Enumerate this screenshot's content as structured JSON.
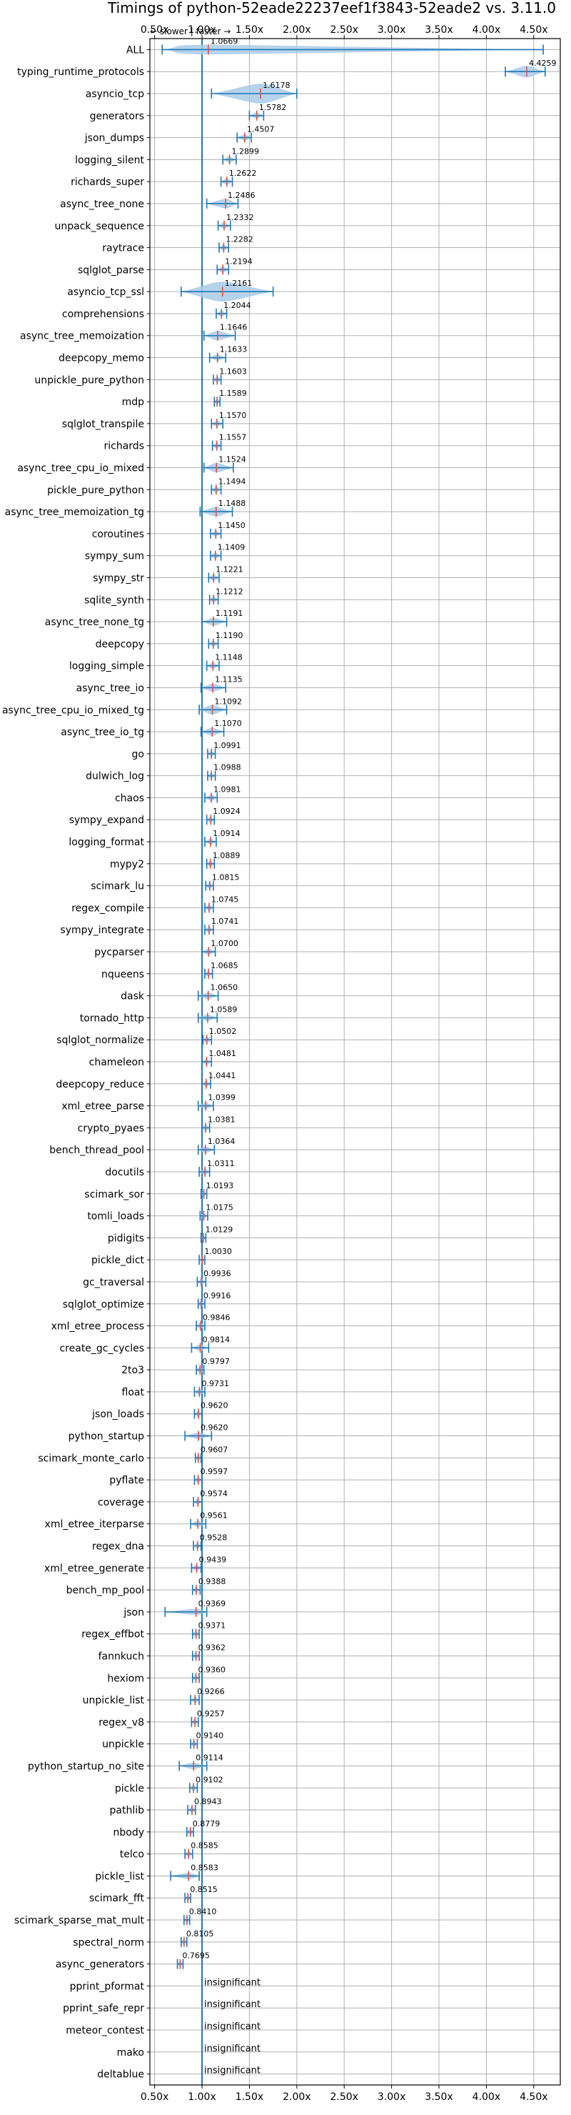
{
  "chart_data": {
    "type": "violin",
    "title": "Timings of python-52eade22237eef1f3843-52eade2 vs. 3.11.0",
    "direction_note": "← slower | faster →",
    "x_tick_labels": [
      "0.50x",
      "1.00x",
      "1.50x",
      "2.00x",
      "2.50x",
      "3.00x",
      "3.50x",
      "4.00x",
      "4.50x"
    ],
    "x_ticks": [
      0.5,
      1.0,
      1.5,
      2.0,
      2.5,
      3.0,
      3.5,
      4.0,
      4.5
    ],
    "xlim": [
      0.45,
      4.78
    ],
    "reference_line": 1.0,
    "grid": true,
    "colors": {
      "violin": "#a9cbe8",
      "whisker": "#1f77b4",
      "median": "#d9534f",
      "reference": "#1f77b4"
    },
    "insignificant_label": "insignificant",
    "benchmarks": [
      {
        "name": "ALL",
        "value": 1.0669,
        "label": "1.0669",
        "min": 0.58,
        "max": 4.6,
        "spread": 0.12
      },
      {
        "name": "typing_runtime_protocols",
        "value": 4.4259,
        "label": "4.4259",
        "min": 4.2,
        "max": 4.62,
        "spread": 0.15
      },
      {
        "name": "asyncio_tcp",
        "value": 1.6178,
        "label": "1.6178",
        "min": 1.1,
        "max": 2.0,
        "spread": 0.3
      },
      {
        "name": "generators",
        "value": 1.5782,
        "label": "1.5782",
        "min": 1.5,
        "max": 1.65,
        "spread": 0.05
      },
      {
        "name": "json_dumps",
        "value": 1.4507,
        "label": "1.4507",
        "min": 1.37,
        "max": 1.52,
        "spread": 0.05
      },
      {
        "name": "logging_silent",
        "value": 1.2899,
        "label": "1.2899",
        "min": 1.22,
        "max": 1.36,
        "spread": 0.05
      },
      {
        "name": "richards_super",
        "value": 1.2622,
        "label": "1.2622",
        "min": 1.2,
        "max": 1.32,
        "spread": 0.04
      },
      {
        "name": "async_tree_none",
        "value": 1.2486,
        "label": "1.2486",
        "min": 1.05,
        "max": 1.38,
        "spread": 0.12
      },
      {
        "name": "unpack_sequence",
        "value": 1.2332,
        "label": "1.2332",
        "min": 1.17,
        "max": 1.3,
        "spread": 0.04
      },
      {
        "name": "raytrace",
        "value": 1.2282,
        "label": "1.2282",
        "min": 1.18,
        "max": 1.28,
        "spread": 0.04
      },
      {
        "name": "sqlglot_parse",
        "value": 1.2194,
        "label": "1.2194",
        "min": 1.16,
        "max": 1.28,
        "spread": 0.04
      },
      {
        "name": "asyncio_tcp_ssl",
        "value": 1.2161,
        "label": "1.2161",
        "min": 0.78,
        "max": 1.75,
        "spread": 0.3
      },
      {
        "name": "comprehensions",
        "value": 1.2044,
        "label": "1.2044",
        "min": 1.15,
        "max": 1.26,
        "spread": 0.04
      },
      {
        "name": "async_tree_memoization",
        "value": 1.1646,
        "label": "1.1646",
        "min": 1.02,
        "max": 1.35,
        "spread": 0.12
      },
      {
        "name": "deepcopy_memo",
        "value": 1.1633,
        "label": "1.1633",
        "min": 1.08,
        "max": 1.25,
        "spread": 0.04
      },
      {
        "name": "unpickle_pure_python",
        "value": 1.1603,
        "label": "1.1603",
        "min": 1.12,
        "max": 1.2,
        "spread": 0.03
      },
      {
        "name": "mdp",
        "value": 1.1589,
        "label": "1.1589",
        "min": 1.13,
        "max": 1.19,
        "spread": 0.03
      },
      {
        "name": "sqlglot_transpile",
        "value": 1.157,
        "label": "1.1570",
        "min": 1.1,
        "max": 1.22,
        "spread": 0.04
      },
      {
        "name": "richards",
        "value": 1.1557,
        "label": "1.1557",
        "min": 1.11,
        "max": 1.2,
        "spread": 0.03
      },
      {
        "name": "async_tree_cpu_io_mixed",
        "value": 1.1524,
        "label": "1.1524",
        "min": 1.02,
        "max": 1.33,
        "spread": 0.12
      },
      {
        "name": "pickle_pure_python",
        "value": 1.1494,
        "label": "1.1494",
        "min": 1.1,
        "max": 1.2,
        "spread": 0.04
      },
      {
        "name": "async_tree_memoization_tg",
        "value": 1.1488,
        "label": "1.1488",
        "min": 0.98,
        "max": 1.32,
        "spread": 0.12
      },
      {
        "name": "coroutines",
        "value": 1.145,
        "label": "1.1450",
        "min": 1.09,
        "max": 1.2,
        "spread": 0.05
      },
      {
        "name": "sympy_sum",
        "value": 1.1409,
        "label": "1.1409",
        "min": 1.09,
        "max": 1.2,
        "spread": 0.04
      },
      {
        "name": "sympy_str",
        "value": 1.1221,
        "label": "1.1221",
        "min": 1.07,
        "max": 1.18,
        "spread": 0.04
      },
      {
        "name": "sqlite_synth",
        "value": 1.1212,
        "label": "1.1212",
        "min": 1.08,
        "max": 1.17,
        "spread": 0.03
      },
      {
        "name": "async_tree_none_tg",
        "value": 1.1191,
        "label": "1.1191",
        "min": 1.0,
        "max": 1.26,
        "spread": 0.1
      },
      {
        "name": "deepcopy",
        "value": 1.119,
        "label": "1.1190",
        "min": 1.07,
        "max": 1.17,
        "spread": 0.04
      },
      {
        "name": "logging_simple",
        "value": 1.1148,
        "label": "1.1148",
        "min": 1.05,
        "max": 1.18,
        "spread": 0.05
      },
      {
        "name": "async_tree_io",
        "value": 1.1135,
        "label": "1.1135",
        "min": 0.99,
        "max": 1.25,
        "spread": 0.1
      },
      {
        "name": "async_tree_cpu_io_mixed_tg",
        "value": 1.1092,
        "label": "1.1092",
        "min": 0.97,
        "max": 1.26,
        "spread": 0.12
      },
      {
        "name": "async_tree_io_tg",
        "value": 1.107,
        "label": "1.1070",
        "min": 0.99,
        "max": 1.23,
        "spread": 0.1
      },
      {
        "name": "go",
        "value": 1.0991,
        "label": "1.0991",
        "min": 1.06,
        "max": 1.14,
        "spread": 0.03
      },
      {
        "name": "dulwich_log",
        "value": 1.0988,
        "label": "1.0988",
        "min": 1.06,
        "max": 1.14,
        "spread": 0.03
      },
      {
        "name": "chaos",
        "value": 1.0981,
        "label": "1.0981",
        "min": 1.03,
        "max": 1.16,
        "spread": 0.04
      },
      {
        "name": "sympy_expand",
        "value": 1.0924,
        "label": "1.0924",
        "min": 1.05,
        "max": 1.13,
        "spread": 0.03
      },
      {
        "name": "logging_format",
        "value": 1.0914,
        "label": "1.0914",
        "min": 1.03,
        "max": 1.15,
        "spread": 0.04
      },
      {
        "name": "mypy2",
        "value": 1.0889,
        "label": "1.0889",
        "min": 1.05,
        "max": 1.13,
        "spread": 0.03
      },
      {
        "name": "scimark_lu",
        "value": 1.0815,
        "label": "1.0815",
        "min": 1.04,
        "max": 1.12,
        "spread": 0.03
      },
      {
        "name": "regex_compile",
        "value": 1.0745,
        "label": "1.0745",
        "min": 1.03,
        "max": 1.12,
        "spread": 0.03
      },
      {
        "name": "sympy_integrate",
        "value": 1.0741,
        "label": "1.0741",
        "min": 1.03,
        "max": 1.12,
        "spread": 0.03
      },
      {
        "name": "pycparser",
        "value": 1.07,
        "label": "1.0700",
        "min": 1.0,
        "max": 1.14,
        "spread": 0.06
      },
      {
        "name": "nqueens",
        "value": 1.0685,
        "label": "1.0685",
        "min": 1.03,
        "max": 1.11,
        "spread": 0.03
      },
      {
        "name": "dask",
        "value": 1.065,
        "label": "1.0650",
        "min": 0.96,
        "max": 1.17,
        "spread": 0.07
      },
      {
        "name": "tornado_http",
        "value": 1.0589,
        "label": "1.0589",
        "min": 0.96,
        "max": 1.16,
        "spread": 0.07
      },
      {
        "name": "sqlglot_normalize",
        "value": 1.0502,
        "label": "1.0502",
        "min": 1.01,
        "max": 1.1,
        "spread": 0.03
      },
      {
        "name": "chameleon",
        "value": 1.0481,
        "label": "1.0481",
        "min": 1.0,
        "max": 1.1,
        "spread": 0.04
      },
      {
        "name": "deepcopy_reduce",
        "value": 1.0441,
        "label": "1.0441",
        "min": 1.0,
        "max": 1.09,
        "spread": 0.03
      },
      {
        "name": "xml_etree_parse",
        "value": 1.0399,
        "label": "1.0399",
        "min": 0.96,
        "max": 1.12,
        "spread": 0.05
      },
      {
        "name": "crypto_pyaes",
        "value": 1.0381,
        "label": "1.0381",
        "min": 1.0,
        "max": 1.08,
        "spread": 0.03
      },
      {
        "name": "bench_thread_pool",
        "value": 1.0364,
        "label": "1.0364",
        "min": 0.96,
        "max": 1.13,
        "spread": 0.06
      },
      {
        "name": "docutils",
        "value": 1.0311,
        "label": "1.0311",
        "min": 0.97,
        "max": 1.08,
        "spread": 0.04
      },
      {
        "name": "scimark_sor",
        "value": 1.0193,
        "label": "1.0193",
        "min": 0.99,
        "max": 1.05,
        "spread": 0.03
      },
      {
        "name": "tomli_loads",
        "value": 1.0175,
        "label": "1.0175",
        "min": 0.98,
        "max": 1.06,
        "spread": 0.03
      },
      {
        "name": "pidigits",
        "value": 1.0129,
        "label": "1.0129",
        "min": 0.99,
        "max": 1.04,
        "spread": 0.02
      },
      {
        "name": "pickle_dict",
        "value": 1.003,
        "label": "1.0030",
        "min": 0.97,
        "max": 1.03,
        "spread": 0.02
      },
      {
        "name": "gc_traversal",
        "value": 0.9936,
        "label": "0.9936",
        "min": 0.95,
        "max": 1.04,
        "spread": 0.03
      },
      {
        "name": "sqlglot_optimize",
        "value": 0.9916,
        "label": "0.9916",
        "min": 0.96,
        "max": 1.03,
        "spread": 0.03
      },
      {
        "name": "xml_etree_process",
        "value": 0.9846,
        "label": "0.9846",
        "min": 0.94,
        "max": 1.03,
        "spread": 0.03
      },
      {
        "name": "create_gc_cycles",
        "value": 0.9814,
        "label": "0.9814",
        "min": 0.89,
        "max": 1.07,
        "spread": 0.07
      },
      {
        "name": "2to3",
        "value": 0.9797,
        "label": "0.9797",
        "min": 0.94,
        "max": 1.02,
        "spread": 0.03
      },
      {
        "name": "float",
        "value": 0.9731,
        "label": "0.9731",
        "min": 0.92,
        "max": 1.03,
        "spread": 0.04
      },
      {
        "name": "json_loads",
        "value": 0.962,
        "label": "0.9620",
        "min": 0.92,
        "max": 1.0,
        "spread": 0.03
      },
      {
        "name": "python_startup",
        "value": 0.962,
        "label": "0.9620",
        "min": 0.82,
        "max": 1.1,
        "spread": 0.06
      },
      {
        "name": "scimark_monte_carlo",
        "value": 0.9607,
        "label": "0.9607",
        "min": 0.93,
        "max": 0.99,
        "spread": 0.02
      },
      {
        "name": "pyflate",
        "value": 0.9597,
        "label": "0.9597",
        "min": 0.92,
        "max": 1.0,
        "spread": 0.03
      },
      {
        "name": "coverage",
        "value": 0.9574,
        "label": "0.9574",
        "min": 0.91,
        "max": 1.0,
        "spread": 0.03
      },
      {
        "name": "xml_etree_iterparse",
        "value": 0.9561,
        "label": "0.9561",
        "min": 0.88,
        "max": 1.04,
        "spread": 0.05
      },
      {
        "name": "regex_dna",
        "value": 0.9528,
        "label": "0.9528",
        "min": 0.91,
        "max": 0.99,
        "spread": 0.03
      },
      {
        "name": "xml_etree_generate",
        "value": 0.9439,
        "label": "0.9439",
        "min": 0.89,
        "max": 0.99,
        "spread": 0.03
      },
      {
        "name": "bench_mp_pool",
        "value": 0.9388,
        "label": "0.9388",
        "min": 0.9,
        "max": 0.98,
        "spread": 0.03
      },
      {
        "name": "json",
        "value": 0.9369,
        "label": "0.9369",
        "min": 0.61,
        "max": 1.05,
        "spread": 0.08
      },
      {
        "name": "regex_effbot",
        "value": 0.9371,
        "label": "0.9371",
        "min": 0.9,
        "max": 0.97,
        "spread": 0.03
      },
      {
        "name": "fannkuch",
        "value": 0.9362,
        "label": "0.9362",
        "min": 0.9,
        "max": 0.97,
        "spread": 0.03
      },
      {
        "name": "hexiom",
        "value": 0.936,
        "label": "0.9360",
        "min": 0.9,
        "max": 0.97,
        "spread": 0.03
      },
      {
        "name": "unpickle_list",
        "value": 0.9266,
        "label": "0.9266",
        "min": 0.88,
        "max": 0.97,
        "spread": 0.03
      },
      {
        "name": "regex_v8",
        "value": 0.9257,
        "label": "0.9257",
        "min": 0.89,
        "max": 0.96,
        "spread": 0.03
      },
      {
        "name": "unpickle",
        "value": 0.914,
        "label": "0.9140",
        "min": 0.88,
        "max": 0.95,
        "spread": 0.03
      },
      {
        "name": "python_startup_no_site",
        "value": 0.9114,
        "label": "0.9114",
        "min": 0.76,
        "max": 1.05,
        "spread": 0.06
      },
      {
        "name": "pickle",
        "value": 0.9102,
        "label": "0.9102",
        "min": 0.87,
        "max": 0.95,
        "spread": 0.03
      },
      {
        "name": "pathlib",
        "value": 0.8943,
        "label": "0.8943",
        "min": 0.85,
        "max": 0.93,
        "spread": 0.03
      },
      {
        "name": "nbody",
        "value": 0.8779,
        "label": "0.8779",
        "min": 0.84,
        "max": 0.91,
        "spread": 0.03
      },
      {
        "name": "telco",
        "value": 0.8585,
        "label": "0.8585",
        "min": 0.82,
        "max": 0.9,
        "spread": 0.03
      },
      {
        "name": "pickle_list",
        "value": 0.8583,
        "label": "0.8583",
        "min": 0.67,
        "max": 0.97,
        "spread": 0.06
      },
      {
        "name": "scimark_fft",
        "value": 0.8515,
        "label": "0.8515",
        "min": 0.82,
        "max": 0.88,
        "spread": 0.02
      },
      {
        "name": "scimark_sparse_mat_mult",
        "value": 0.841,
        "label": "0.8410",
        "min": 0.81,
        "max": 0.87,
        "spread": 0.02
      },
      {
        "name": "spectral_norm",
        "value": 0.8105,
        "label": "0.8105",
        "min": 0.78,
        "max": 0.84,
        "spread": 0.02
      },
      {
        "name": "async_generators",
        "value": 0.7695,
        "label": "0.7695",
        "min": 0.74,
        "max": 0.8,
        "spread": 0.02
      },
      {
        "name": "pprint_pformat",
        "value": null,
        "insignificant": true
      },
      {
        "name": "pprint_safe_repr",
        "value": null,
        "insignificant": true
      },
      {
        "name": "meteor_contest",
        "value": null,
        "insignificant": true
      },
      {
        "name": "mako",
        "value": null,
        "insignificant": true
      },
      {
        "name": "deltablue",
        "value": null,
        "insignificant": true
      }
    ]
  }
}
